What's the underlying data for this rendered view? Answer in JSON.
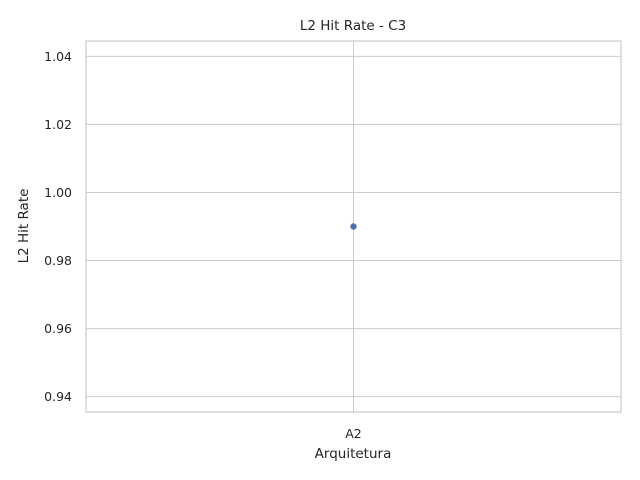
{
  "chart_data": {
    "type": "scatter",
    "title": "L2 Hit Rate - C3",
    "xlabel": "Arquitetura",
    "ylabel": "L2 Hit Rate",
    "categories": [
      "A2"
    ],
    "values": [
      0.99
    ],
    "ylim": [
      0.9355,
      1.0445
    ],
    "yticks": [
      0.94,
      0.96,
      0.98,
      1.0,
      1.02,
      1.04
    ],
    "ytick_labels": [
      "0.94",
      "0.96",
      "0.98",
      "1.00",
      "1.02",
      "1.04"
    ],
    "grid": true,
    "colors": {
      "point": "#4c72b0",
      "grid": "#cccccc",
      "text": "#262626",
      "background": "#ffffff"
    }
  }
}
